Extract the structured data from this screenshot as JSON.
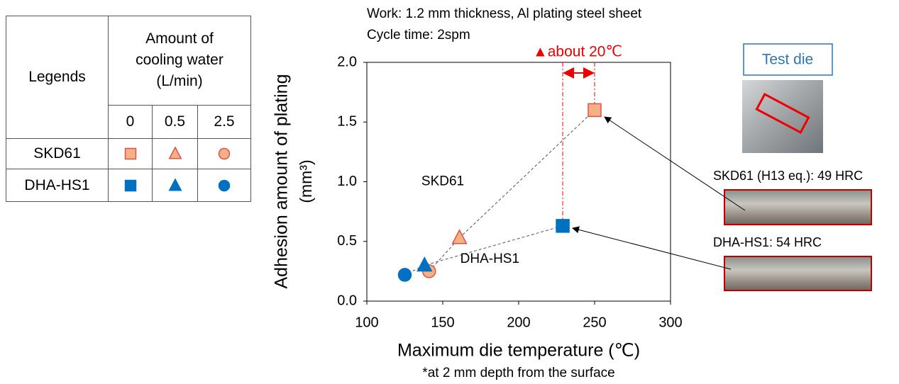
{
  "chart_data": {
    "type": "scatter",
    "subtitle": [
      "Work: 1.2 mm thickness, Al plating steel sheet",
      "Cycle time: 2spm"
    ],
    "difference_label": "▲about 20℃",
    "x_label": "Maximum die temperature (℃)",
    "x_note": "*at 2 mm depth from the surface",
    "y_label": [
      "Adhesion amount of plating",
      "(mm³)"
    ],
    "xlim": [
      100,
      300
    ],
    "xticks": [
      100,
      150,
      200,
      250,
      300
    ],
    "ylim": [
      0,
      2
    ],
    "yticks": [
      {
        "value": 0,
        "label": "0.0"
      },
      0.5,
      {
        "value": 1,
        "label": "1.0"
      },
      1.5,
      {
        "value": 2,
        "label": "2.0"
      }
    ],
    "grid": false,
    "markers": [
      "square",
      "triangle",
      "circle"
    ],
    "series": [
      {
        "name": "SKD61",
        "color": "#f4b183",
        "edgecolor": "#e0504a",
        "x": [
          250,
          161,
          141
        ],
        "values": [
          1.6,
          0.53,
          0.25
        ]
      },
      {
        "name": "DHA-HS1",
        "color": "#0070c0",
        "edgecolor": "#0070c0",
        "x": [
          229,
          138,
          125
        ],
        "values": [
          0.63,
          0.3,
          0.22
        ]
      }
    ],
    "legend_table": {
      "corner": "Legends",
      "header": "Amount of cooling water (L/min)",
      "columns": [
        "0",
        "0.5",
        "2.5"
      ]
    },
    "test_die_label": "Test die",
    "photo_labels": [
      "SKD61 (H13 eq.): 49 HRC",
      "DHA-HS1: 54 HRC"
    ]
  }
}
